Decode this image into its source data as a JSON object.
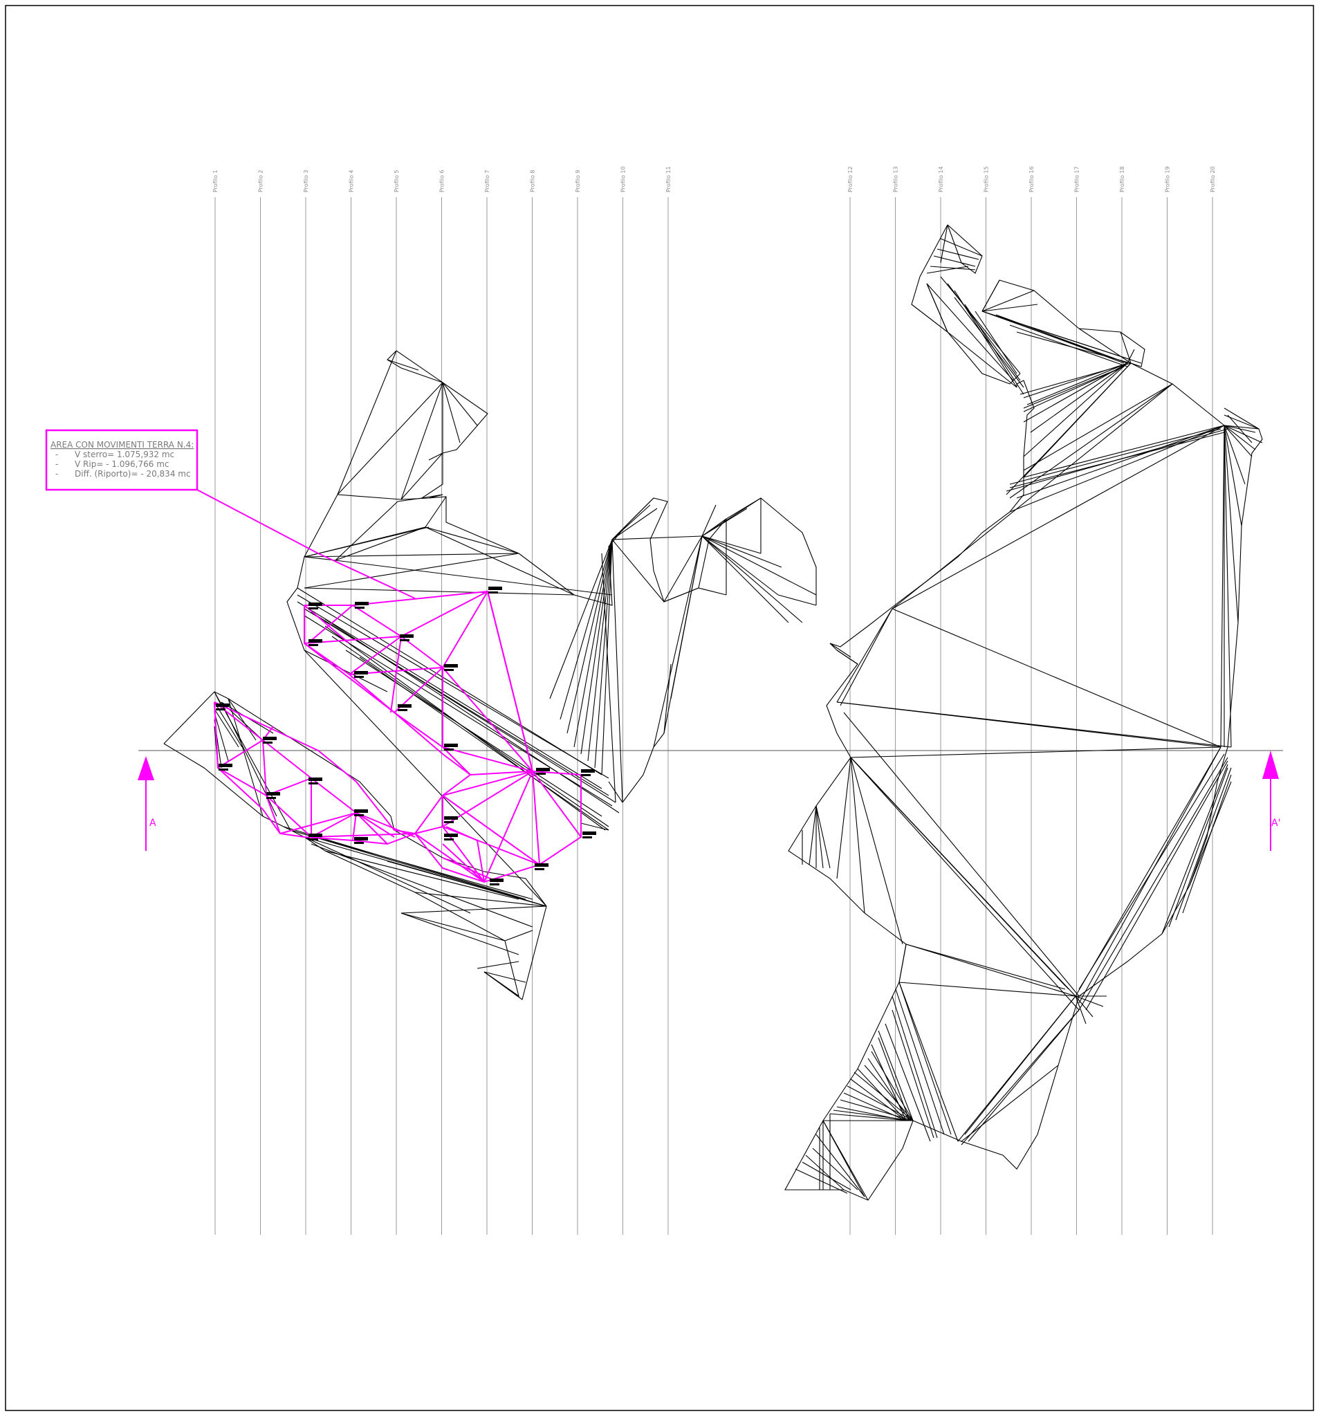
{
  "profiles": {
    "left": [
      "Profilo 1",
      "Profilo 2",
      "Profilo 3",
      "Profilo 4",
      "Profilo 5",
      "Profilo 6",
      "Profilo 7",
      "Profilo 8",
      "Profilo 9",
      "Profilo 10",
      "Profilo 11"
    ],
    "right": [
      "Profilo 12",
      "Profilo 13",
      "Profilo 14",
      "Profilo 15",
      "Profilo 16",
      "Profilo 17",
      "Profilo 18",
      "Profilo 19",
      "Profilo 20"
    ]
  },
  "legend": {
    "title": "AREA CON MOVIMENTI TERRA N.4:",
    "items": [
      {
        "bullet": "-",
        "text": "V sterro= 1.075,932 mc"
      },
      {
        "bullet": "-",
        "text": "V Rip= - 1.096,766 mc"
      },
      {
        "bullet": "-",
        "text": "Diff. (Riporto)= - 20,834 mc"
      }
    ]
  },
  "section": {
    "start": "A",
    "end": "A'"
  },
  "colors": {
    "accent": "#ff00ff",
    "mesh": "#000000",
    "profile_line": "#9a9a9a",
    "frame": "#000000"
  }
}
